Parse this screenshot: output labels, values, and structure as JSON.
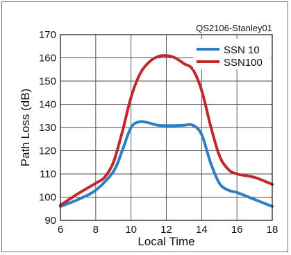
{
  "figure_id": "QS2106-Stanley01",
  "chart_data": {
    "type": "line",
    "xlabel": "Local Time",
    "ylabel": "Path Loss (dB)",
    "xlim": [
      6,
      18
    ],
    "ylim": [
      90,
      170
    ],
    "xticks": [
      6,
      8,
      10,
      12,
      14,
      16,
      18
    ],
    "yticks": [
      90,
      100,
      110,
      120,
      130,
      140,
      150,
      160,
      170
    ],
    "grid": true,
    "legend": "top-right",
    "series": [
      {
        "name": "SSN 10",
        "color": "#2a7fc5",
        "x": [
          6,
          7,
          8,
          9,
          9.5,
          10,
          10.5,
          11,
          11.5,
          12,
          12.5,
          13,
          13.5,
          14,
          14.5,
          15,
          15.5,
          16,
          17,
          18
        ],
        "y": [
          96,
          99,
          103,
          111,
          120,
          130,
          132.5,
          132,
          131,
          130.8,
          130.8,
          131,
          131,
          127,
          115,
          106,
          103,
          102,
          99,
          96
        ]
      },
      {
        "name": "SSN100",
        "color": "#c0282e",
        "x": [
          6,
          7,
          8,
          8.5,
          9,
          9.5,
          10,
          10.5,
          11,
          11.5,
          12,
          12.5,
          13,
          13.5,
          14,
          14.5,
          15,
          15.5,
          16,
          17,
          18
        ],
        "y": [
          96.5,
          101.5,
          106,
          108.5,
          115,
          128,
          143,
          153,
          158,
          160.5,
          161,
          160,
          157.5,
          155,
          146,
          131,
          118,
          112,
          110,
          108.5,
          105.5
        ]
      }
    ]
  }
}
